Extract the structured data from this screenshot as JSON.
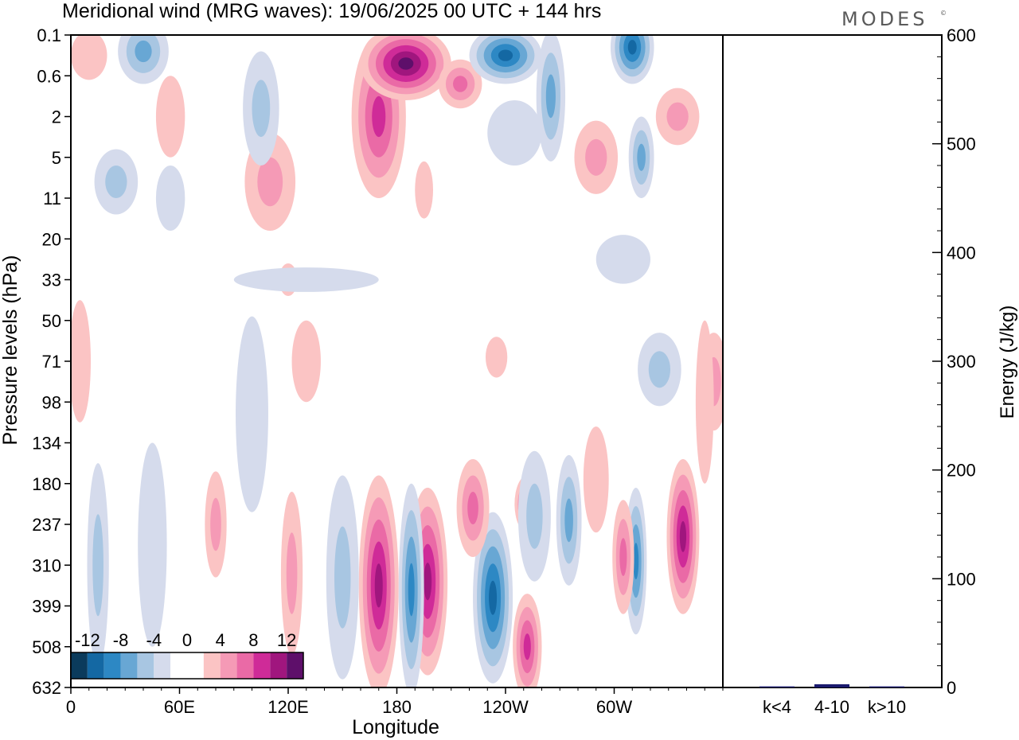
{
  "chart_data": [
    {
      "type": "heatmap",
      "title": "Meridional wind (MRG waves):  19/06/2025  00 UTC  + 144 hrs",
      "xlabel": "Longitude",
      "ylabel": "Pressure levels (hPa)",
      "x_ticks": [
        "0",
        "60E",
        "120E",
        "180",
        "120W",
        "60W"
      ],
      "x_tick_degrees": [
        0,
        60,
        120,
        180,
        240,
        300
      ],
      "xlim": [
        0,
        360
      ],
      "y_ticks": [
        "0.1",
        "0.6",
        "2",
        "5",
        "11",
        "20",
        "33",
        "50",
        "71",
        "98",
        "134",
        "180",
        "237",
        "310",
        "399",
        "508",
        "632"
      ],
      "colorbar": {
        "labels": [
          "-12",
          "-8",
          "-4",
          "0",
          "4",
          "8",
          "12"
        ],
        "colors": [
          "#0b3b5c",
          "#1468a3",
          "#2d88c4",
          "#68a7d4",
          "#a8c6e2",
          "#d5dbec",
          "#ffffff",
          "#ffffff",
          "#fbc4c4",
          "#f59ab6",
          "#ea6aa6",
          "#cf2b98",
          "#a0167e",
          "#5e0f6a"
        ]
      },
      "contours": [
        {
          "lon": 170,
          "lev": 13.5,
          "value": 11,
          "w": 11,
          "h": 2.7
        },
        {
          "lon": 197,
          "lev": 13.4,
          "value": 10,
          "w": 11,
          "h": 2.3
        },
        {
          "lon": 188,
          "lev": 13.6,
          "value": -8,
          "w": 7,
          "h": 2.6
        },
        {
          "lon": 150,
          "lev": 13.3,
          "value": -5,
          "w": 9,
          "h": 2.5
        },
        {
          "lon": 122,
          "lev": 13.2,
          "value": 4,
          "w": 6,
          "h": 2.0
        },
        {
          "lon": 233,
          "lev": 13.8,
          "value": -10,
          "w": 11,
          "h": 2.1
        },
        {
          "lon": 222,
          "lev": 11.6,
          "value": 6,
          "w": 9,
          "h": 1.2
        },
        {
          "lon": 252,
          "lev": 15.0,
          "value": 8,
          "w": 8,
          "h": 1.3
        },
        {
          "lon": 252,
          "lev": 11.5,
          "value": 8,
          "w": 7,
          "h": 0.7
        },
        {
          "lon": 256,
          "lev": 11.8,
          "value": -4,
          "w": 9,
          "h": 1.6
        },
        {
          "lon": 275,
          "lev": 11.9,
          "value": -7,
          "w": 7,
          "h": 1.6
        },
        {
          "lon": 312,
          "lev": 12.9,
          "value": -8,
          "w": 6,
          "h": 1.8
        },
        {
          "lon": 338,
          "lev": 12.3,
          "value": 11,
          "w": 9,
          "h": 1.9
        },
        {
          "lon": 305,
          "lev": 12.8,
          "value": 6,
          "w": 6,
          "h": 1.4
        },
        {
          "lon": 290,
          "lev": 10.9,
          "value": 3,
          "w": 7,
          "h": 1.3
        },
        {
          "lon": 325,
          "lev": 8.2,
          "value": -4,
          "w": 12,
          "h": 0.9
        },
        {
          "lon": 355,
          "lev": 8.5,
          "value": 4,
          "w": 8,
          "h": 1.2
        },
        {
          "lon": 100,
          "lev": 9.3,
          "value": -3,
          "w": 9,
          "h": 2.4
        },
        {
          "lon": 80,
          "lev": 12.0,
          "value": 4,
          "w": 6,
          "h": 1.3
        },
        {
          "lon": 45,
          "lev": 12.5,
          "value": -3,
          "w": 8,
          "h": 2.5
        },
        {
          "lon": 15,
          "lev": 13.0,
          "value": -4,
          "w": 6,
          "h": 2.5
        },
        {
          "lon": 350,
          "lev": 9.0,
          "value": 3,
          "w": 5,
          "h": 2.0
        },
        {
          "lon": 5,
          "lev": 8.0,
          "value": 3,
          "w": 6,
          "h": 1.5
        },
        {
          "lon": 130,
          "lev": 8.0,
          "value": 3,
          "w": 8,
          "h": 1.0
        },
        {
          "lon": 235,
          "lev": 7.9,
          "value": 2,
          "w": 6,
          "h": 0.5
        },
        {
          "lon": 120,
          "lev": 6.0,
          "value": 2,
          "w": 5,
          "h": 0.4
        },
        {
          "lon": 55,
          "lev": 4.0,
          "value": -2,
          "w": 8,
          "h": 0.8
        },
        {
          "lon": 25,
          "lev": 3.6,
          "value": -5,
          "w": 12,
          "h": 0.8
        },
        {
          "lon": 55,
          "lev": 2.0,
          "value": 3,
          "w": 8,
          "h": 1.0
        },
        {
          "lon": 110,
          "lev": 3.6,
          "value": 5,
          "w": 14,
          "h": 1.2
        },
        {
          "lon": 105,
          "lev": 1.8,
          "value": -5,
          "w": 10,
          "h": 1.4
        },
        {
          "lon": 170,
          "lev": 2.0,
          "value": 9,
          "w": 15,
          "h": 2.0
        },
        {
          "lon": 185,
          "lev": 0.7,
          "value": 12,
          "w": 25,
          "h": 0.9
        },
        {
          "lon": 215,
          "lev": 1.2,
          "value": 6,
          "w": 12,
          "h": 0.6
        },
        {
          "lon": 240,
          "lev": 0.5,
          "value": -11,
          "w": 20,
          "h": 0.7
        },
        {
          "lon": 265,
          "lev": 1.5,
          "value": -7,
          "w": 8,
          "h": 1.6
        },
        {
          "lon": 310,
          "lev": 0.3,
          "value": -10,
          "w": 12,
          "h": 0.9
        },
        {
          "lon": 40,
          "lev": 0.4,
          "value": -7,
          "w": 14,
          "h": 0.8
        },
        {
          "lon": 10,
          "lev": 0.5,
          "value": 3,
          "w": 10,
          "h": 0.6
        },
        {
          "lon": 315,
          "lev": 3.0,
          "value": -6,
          "w": 7,
          "h": 1.0
        },
        {
          "lon": 290,
          "lev": 3.0,
          "value": 5,
          "w": 12,
          "h": 0.9
        },
        {
          "lon": 335,
          "lev": 2.0,
          "value": 4,
          "w": 12,
          "h": 0.7
        },
        {
          "lon": 245,
          "lev": 2.4,
          "value": -3,
          "w": 15,
          "h": 0.8
        },
        {
          "lon": 195,
          "lev": 3.8,
          "value": 3,
          "w": 5,
          "h": 0.7
        },
        {
          "lon": 130,
          "lev": 6.0,
          "value": -2,
          "w": 40,
          "h": 0.3
        },
        {
          "lon": 305,
          "lev": 5.5,
          "value": -2,
          "w": 15,
          "h": 0.6
        }
      ]
    },
    {
      "type": "bar",
      "ylabel": "Energy (J/kg)",
      "categories": [
        "k<4",
        "4-10",
        "k>10"
      ],
      "values": [
        1,
        3,
        1
      ],
      "ylim": [
        0,
        600
      ],
      "y_ticks": [
        "0",
        "100",
        "200",
        "300",
        "400",
        "500",
        "600"
      ],
      "bar_color": "#1a1a6e"
    }
  ],
  "brand": {
    "logo": "MODES",
    "mark": "©"
  }
}
